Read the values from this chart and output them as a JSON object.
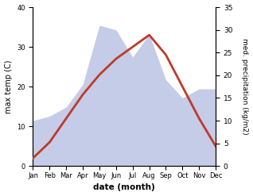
{
  "months": [
    "Jan",
    "Feb",
    "Mar",
    "Apr",
    "May",
    "Jun",
    "Jul",
    "Aug",
    "Sep",
    "Oct",
    "Nov",
    "Dec"
  ],
  "temperature": [
    2,
    6,
    12,
    18,
    23,
    27,
    30,
    33,
    28,
    20,
    12,
    5
  ],
  "precipitation": [
    10,
    11,
    13,
    18,
    31,
    30,
    24,
    29,
    19,
    15,
    17,
    17
  ],
  "temp_color": "#c0392b",
  "precip_color": "#c5cce8",
  "left_label": "max temp (C)",
  "right_label": "med. precipitation (kg/m2)",
  "xlabel": "date (month)",
  "ylim_left": [
    0,
    40
  ],
  "ylim_right": [
    0,
    35
  ],
  "yticks_left": [
    0,
    10,
    20,
    30,
    40
  ],
  "yticks_right": [
    0,
    5,
    10,
    15,
    20,
    25,
    30,
    35
  ],
  "background_color": "#ffffff",
  "line_width": 2.0
}
